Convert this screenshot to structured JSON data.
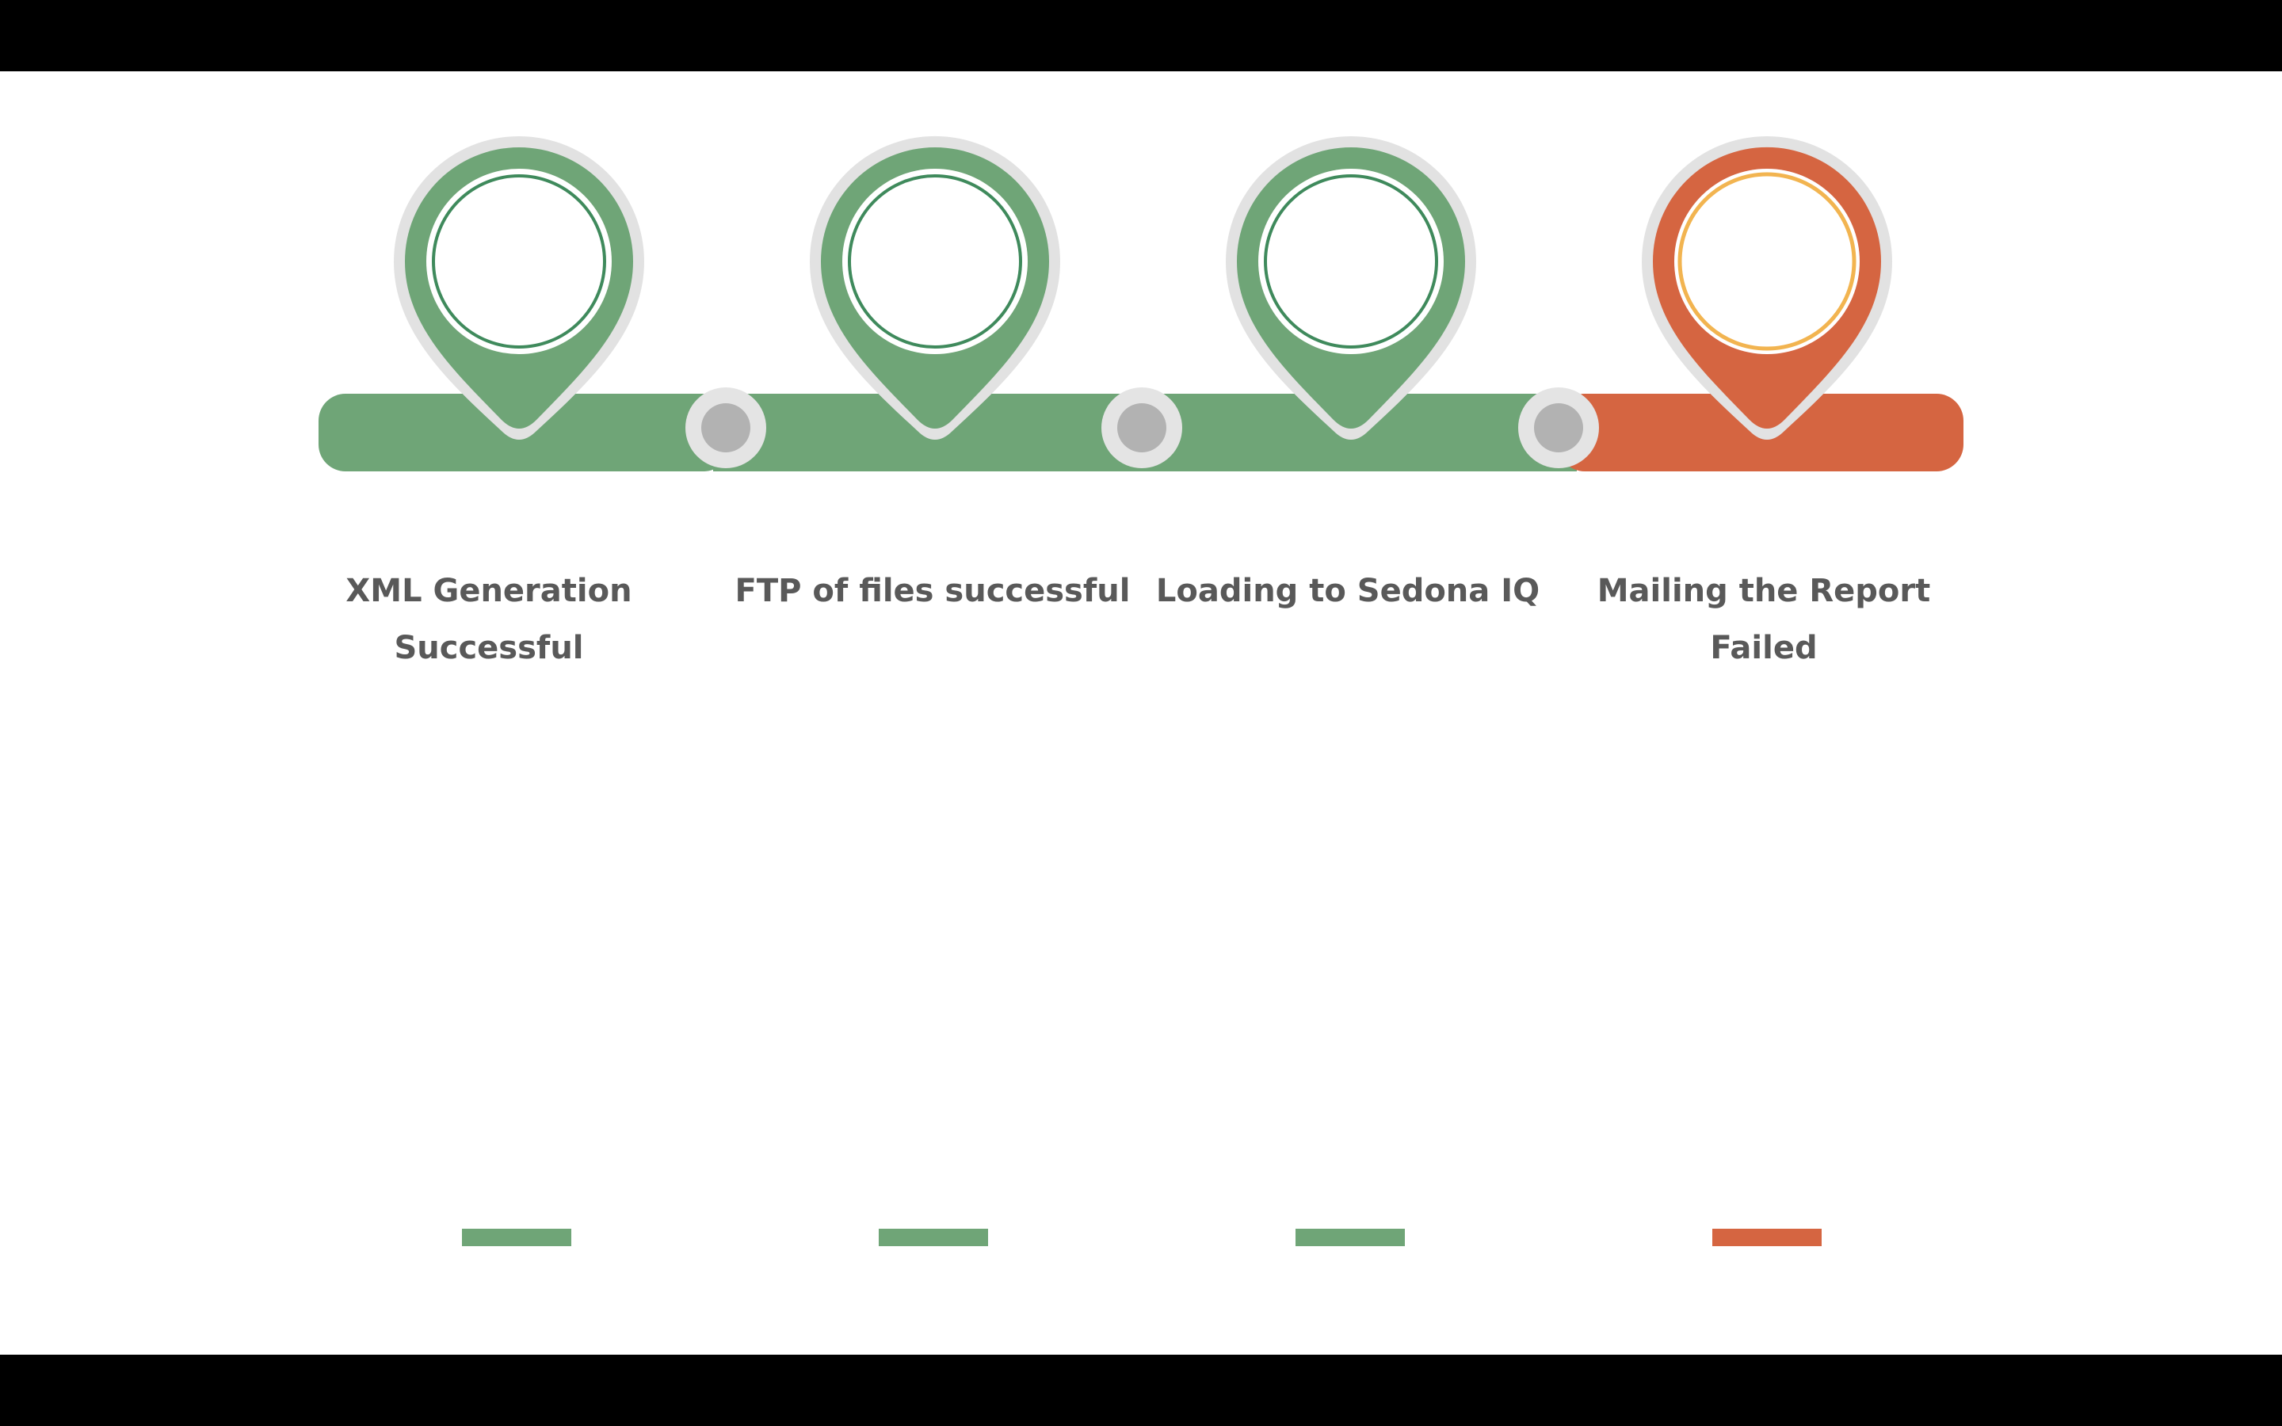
{
  "colors": {
    "success": "#6fa577",
    "failure": "#d56541",
    "connector_ring": "#e4e4e4",
    "connector_dot": "#b2b2b2",
    "pin_halo": "#e2e2e2",
    "success_inner_ring": "#3f8a5c",
    "failure_inner_ring": "#f2b450",
    "label_text": "#595959"
  },
  "steps": [
    {
      "label": "XML Generation\nSuccessful",
      "status": "success",
      "icon": "map-pin-icon"
    },
    {
      "label": "FTP of files successful",
      "status": "success",
      "icon": "map-pin-icon"
    },
    {
      "label": "Loading to Sedona IQ",
      "status": "success",
      "icon": "map-pin-icon"
    },
    {
      "label": "Mailing the Report\nFailed",
      "status": "failure",
      "icon": "map-pin-icon"
    }
  ]
}
